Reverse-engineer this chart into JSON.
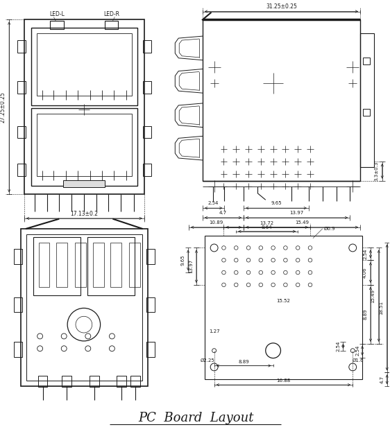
{
  "bg_color": "#ffffff",
  "lc": "#1a1a1a",
  "lw": 0.7,
  "title": "PC  Board  Layout",
  "tl": {
    "width_label": "17.13±0.2",
    "height_label": "27.25±0.25",
    "led_l": "LED-L",
    "led_r": "LED-R"
  },
  "tr": {
    "width_label": "31.25±0.25",
    "d1": "2.54",
    "d2": "4.7",
    "d3": "9.65",
    "d4": "13.97",
    "d5": "10.89",
    "d6": "15.49",
    "d7": "3.3±0.3"
  },
  "br": {
    "d1": "13.72",
    "d2": "8.64",
    "d3": "Ø0.9",
    "d4": "2.54",
    "d5": "15.52",
    "d6": "4.06",
    "d7": "13.97",
    "d8": "9.65",
    "d9": "1.27",
    "d10": "8.89",
    "d11": "2.54",
    "d12": "8.89",
    "d13": "Ø2.25",
    "d14": "16.88",
    "d15": "Ø1.6",
    "d16": "2.54",
    "d17": "4.7",
    "d18": "15.49",
    "d19": "18.51"
  }
}
